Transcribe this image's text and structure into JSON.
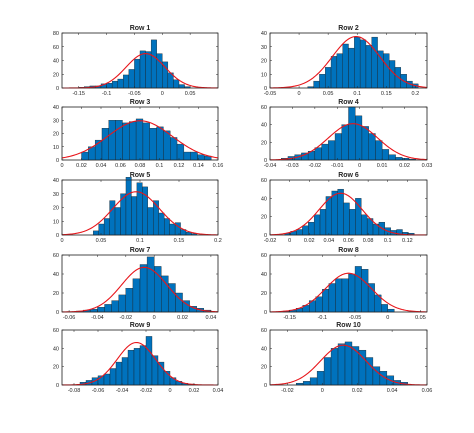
{
  "colors": {
    "bar": "#0072BD",
    "fit": "#e8161b",
    "axis": "#262626"
  },
  "chart_data": [
    {
      "type": "bar",
      "title": "Row 1",
      "xlim": [
        -0.18,
        0.1
      ],
      "ylim": [
        0,
        80
      ],
      "xticks": [
        -0.15,
        -0.1,
        -0.05,
        0,
        0.05
      ],
      "xtick_labels": [
        "-0.15",
        "-0.1",
        "-0.05",
        "0",
        "0.05"
      ],
      "yticks": [
        0,
        20,
        40,
        60,
        80
      ],
      "ytick_labels": [
        "0",
        "20",
        "40",
        "60",
        "80"
      ],
      "bins": [
        -0.15,
        -0.14,
        -0.13,
        -0.12,
        -0.11,
        -0.1,
        -0.09,
        -0.08,
        -0.07,
        -0.06,
        -0.05,
        -0.04,
        -0.03,
        -0.02,
        -0.01,
        0,
        0.01,
        0.02,
        0.03,
        0.04
      ],
      "counts": [
        1,
        2,
        3,
        3,
        6,
        7,
        10,
        13,
        19,
        27,
        42,
        54,
        53,
        70,
        50,
        38,
        22,
        12,
        5,
        2
      ],
      "fit": {
        "mean": -0.03,
        "sd": 0.035
      }
    },
    {
      "type": "bar",
      "title": "Row 2",
      "xlim": [
        -0.05,
        0.22
      ],
      "ylim": [
        0,
        40
      ],
      "xticks": [
        -0.05,
        0,
        0.05,
        0.1,
        0.15,
        0.2
      ],
      "xtick_labels": [
        "-0.05",
        "0",
        "0.05",
        "0.1",
        "0.15",
        "0.2"
      ],
      "yticks": [
        0,
        10,
        20,
        30,
        40
      ],
      "ytick_labels": [
        "0",
        "10",
        "20",
        "30",
        "40"
      ],
      "bins": [
        0.015,
        0.025,
        0.035,
        0.045,
        0.055,
        0.065,
        0.075,
        0.085,
        0.095,
        0.105,
        0.115,
        0.125,
        0.135,
        0.145,
        0.155,
        0.165,
        0.175,
        0.185,
        0.195
      ],
      "counts": [
        1,
        5,
        10,
        15,
        23,
        25,
        32,
        29,
        37,
        35,
        31,
        37,
        27,
        25,
        20,
        15,
        10,
        5,
        3
      ],
      "fit": {
        "mean": 0.098,
        "sd": 0.041
      }
    },
    {
      "type": "bar",
      "title": "Row 3",
      "xlim": [
        0,
        0.16
      ],
      "ylim": [
        0,
        40
      ],
      "xticks": [
        0,
        0.02,
        0.04,
        0.06,
        0.08,
        0.1,
        0.12,
        0.14,
        0.16
      ],
      "xtick_labels": [
        "0",
        "0.02",
        "0.04",
        "0.06",
        "0.08",
        "0.1",
        "0.12",
        "0.14",
        "0.16"
      ],
      "yticks": [
        0,
        10,
        20,
        30,
        40
      ],
      "ytick_labels": [
        "0",
        "10",
        "20",
        "30",
        "40"
      ],
      "bins": [
        0.02,
        0.027,
        0.034,
        0.041,
        0.048,
        0.055,
        0.062,
        0.069,
        0.076,
        0.083,
        0.09,
        0.097,
        0.104,
        0.111,
        0.118,
        0.125,
        0.132,
        0.139,
        0.146
      ],
      "counts": [
        6,
        10,
        15,
        24,
        30,
        30,
        28,
        29,
        31,
        28,
        24,
        25,
        22,
        17,
        12,
        6,
        6,
        4,
        3
      ],
      "fit": {
        "mean": 0.08,
        "sd": 0.033
      }
    },
    {
      "type": "bar",
      "title": "Row 4",
      "xlim": [
        -0.04,
        0.03
      ],
      "ylim": [
        0,
        60
      ],
      "xticks": [
        -0.04,
        -0.03,
        -0.02,
        -0.01,
        0,
        0.01,
        0.02,
        0.03
      ],
      "xtick_labels": [
        "-0.04",
        "-0.03",
        "-0.02",
        "-0.01",
        "0",
        "0.01",
        "0.02",
        "0.03"
      ],
      "yticks": [
        0,
        20,
        40,
        60
      ],
      "ytick_labels": [
        "0",
        "20",
        "40",
        "60"
      ],
      "bins": [
        -0.035,
        -0.032,
        -0.029,
        -0.026,
        -0.023,
        -0.02,
        -0.017,
        -0.014,
        -0.011,
        -0.008,
        -0.005,
        -0.002,
        0.001,
        0.004,
        0.007,
        0.01,
        0.013,
        0.016,
        0.019,
        0.022
      ],
      "counts": [
        2,
        4,
        6,
        8,
        10,
        14,
        18,
        22,
        30,
        40,
        60,
        50,
        38,
        30,
        22,
        12,
        6,
        3,
        2,
        1
      ],
      "fit": {
        "mean": -0.003,
        "sd": 0.011
      }
    },
    {
      "type": "bar",
      "title": "Row 5",
      "xlim": [
        0,
        0.2
      ],
      "ylim": [
        0,
        40
      ],
      "xticks": [
        0,
        0.05,
        0.1,
        0.15,
        0.2
      ],
      "xtick_labels": [
        "0",
        "0.05",
        "0.1",
        "0.15",
        "0.2"
      ],
      "yticks": [
        0,
        10,
        20,
        30,
        40
      ],
      "ytick_labels": [
        "0",
        "10",
        "20",
        "30",
        "40"
      ],
      "bins": [
        0.04,
        0.047,
        0.054,
        0.061,
        0.068,
        0.075,
        0.082,
        0.089,
        0.096,
        0.103,
        0.11,
        0.117,
        0.124,
        0.131,
        0.138,
        0.145,
        0.152,
        0.159,
        0.166
      ],
      "counts": [
        3,
        8,
        12,
        25,
        20,
        30,
        42,
        28,
        38,
        35,
        20,
        25,
        16,
        12,
        8,
        9,
        4,
        2,
        1
      ],
      "fit": {
        "mean": 0.095,
        "sd": 0.03
      }
    },
    {
      "type": "bar",
      "title": "Row 6",
      "xlim": [
        -0.02,
        0.14
      ],
      "ylim": [
        0,
        60
      ],
      "xticks": [
        -0.02,
        0,
        0.02,
        0.04,
        0.06,
        0.08,
        0.1,
        0.12
      ],
      "xtick_labels": [
        "-0.02",
        "0",
        "0.02",
        "0.04",
        "0.06",
        "0.08",
        "0.1",
        "0.12"
      ],
      "yticks": [
        0,
        20,
        40,
        60
      ],
      "ytick_labels": [
        "0",
        "20",
        "40",
        "60"
      ],
      "bins": [
        -0.005,
        0.001,
        0.007,
        0.013,
        0.019,
        0.025,
        0.031,
        0.037,
        0.043,
        0.049,
        0.055,
        0.061,
        0.067,
        0.073,
        0.079,
        0.085,
        0.091,
        0.097,
        0.103,
        0.109,
        0.115,
        0.121
      ],
      "counts": [
        2,
        4,
        6,
        10,
        14,
        22,
        28,
        42,
        48,
        50,
        35,
        28,
        40,
        22,
        18,
        12,
        14,
        8,
        5,
        6,
        3,
        2
      ],
      "fit": {
        "mean": 0.052,
        "sd": 0.022
      }
    },
    {
      "type": "bar",
      "title": "Row 7",
      "xlim": [
        -0.065,
        0.045
      ],
      "ylim": [
        0,
        60
      ],
      "xticks": [
        -0.06,
        -0.04,
        -0.02,
        0,
        0.02,
        0.04
      ],
      "xtick_labels": [
        "-0.06",
        "-0.04",
        "-0.02",
        "0",
        "0.02",
        "0.04"
      ],
      "yticks": [
        0,
        20,
        40,
        60
      ],
      "ytick_labels": [
        "0",
        "20",
        "40",
        "60"
      ],
      "bins": [
        -0.055,
        -0.05,
        -0.045,
        -0.04,
        -0.035,
        -0.03,
        -0.025,
        -0.02,
        -0.015,
        -0.01,
        -0.005,
        0,
        0.005,
        0.01,
        0.015,
        0.02,
        0.025,
        0.03,
        0.035
      ],
      "counts": [
        1,
        2,
        3,
        5,
        8,
        12,
        18,
        25,
        35,
        50,
        58,
        48,
        38,
        30,
        20,
        12,
        6,
        4,
        2
      ],
      "fit": {
        "mean": -0.007,
        "sd": 0.016
      }
    },
    {
      "type": "bar",
      "title": "Row 8",
      "xlim": [
        -0.18,
        0.06
      ],
      "ylim": [
        0,
        60
      ],
      "xticks": [
        -0.15,
        -0.1,
        -0.05,
        0,
        0.05
      ],
      "xtick_labels": [
        "-0.15",
        "-0.1",
        "-0.05",
        "0",
        "0.05"
      ],
      "yticks": [
        0,
        20,
        40,
        60
      ],
      "ytick_labels": [
        "0",
        "20",
        "40",
        "60"
      ],
      "bins": [
        -0.16,
        -0.15,
        -0.14,
        -0.13,
        -0.12,
        -0.11,
        -0.1,
        -0.09,
        -0.08,
        -0.07,
        -0.06,
        -0.05,
        -0.04,
        -0.03,
        -0.02,
        -0.01,
        0
      ],
      "counts": [
        1,
        2,
        4,
        7,
        12,
        16,
        24,
        30,
        35,
        35,
        40,
        48,
        45,
        30,
        18,
        8,
        3
      ],
      "fit": {
        "mean": -0.06,
        "sd": 0.035
      }
    },
    {
      "type": "bar",
      "title": "Row 9",
      "xlim": [
        -0.09,
        0.04
      ],
      "ylim": [
        0,
        60
      ],
      "xticks": [
        -0.08,
        -0.06,
        -0.04,
        -0.02,
        0,
        0.02,
        0.04
      ],
      "xtick_labels": [
        "-0.08",
        "-0.06",
        "-0.04",
        "-0.02",
        "0",
        "0.02",
        "0.04"
      ],
      "yticks": [
        0,
        20,
        40,
        60
      ],
      "ytick_labels": [
        "0",
        "20",
        "40",
        "60"
      ],
      "bins": [
        -0.075,
        -0.07,
        -0.065,
        -0.06,
        -0.055,
        -0.05,
        -0.045,
        -0.04,
        -0.035,
        -0.03,
        -0.025,
        -0.02,
        -0.015,
        -0.01,
        -0.005,
        0,
        0.005,
        0.01,
        0.015
      ],
      "counts": [
        3,
        5,
        8,
        10,
        12,
        18,
        25,
        30,
        38,
        40,
        43,
        53,
        32,
        25,
        15,
        8,
        4,
        2,
        1
      ],
      "fit": {
        "mean": -0.028,
        "sd": 0.016
      }
    },
    {
      "type": "bar",
      "title": "Row 10",
      "xlim": [
        -0.03,
        0.06
      ],
      "ylim": [
        0,
        60
      ],
      "xticks": [
        -0.02,
        0,
        0.02,
        0.04,
        0.06
      ],
      "xtick_labels": [
        "-0.02",
        "0",
        "0.02",
        "0.04",
        "0.06"
      ],
      "yticks": [
        0,
        20,
        40,
        60
      ],
      "ytick_labels": [
        "0",
        "20",
        "40",
        "60"
      ],
      "bins": [
        -0.015,
        -0.011,
        -0.007,
        -0.003,
        0.001,
        0.005,
        0.009,
        0.013,
        0.017,
        0.021,
        0.025,
        0.029,
        0.033,
        0.037,
        0.041,
        0.045
      ],
      "counts": [
        2,
        4,
        8,
        15,
        30,
        40,
        45,
        47,
        42,
        38,
        30,
        20,
        15,
        10,
        5,
        3
      ],
      "fit": {
        "mean": 0.012,
        "sd": 0.013
      }
    }
  ]
}
